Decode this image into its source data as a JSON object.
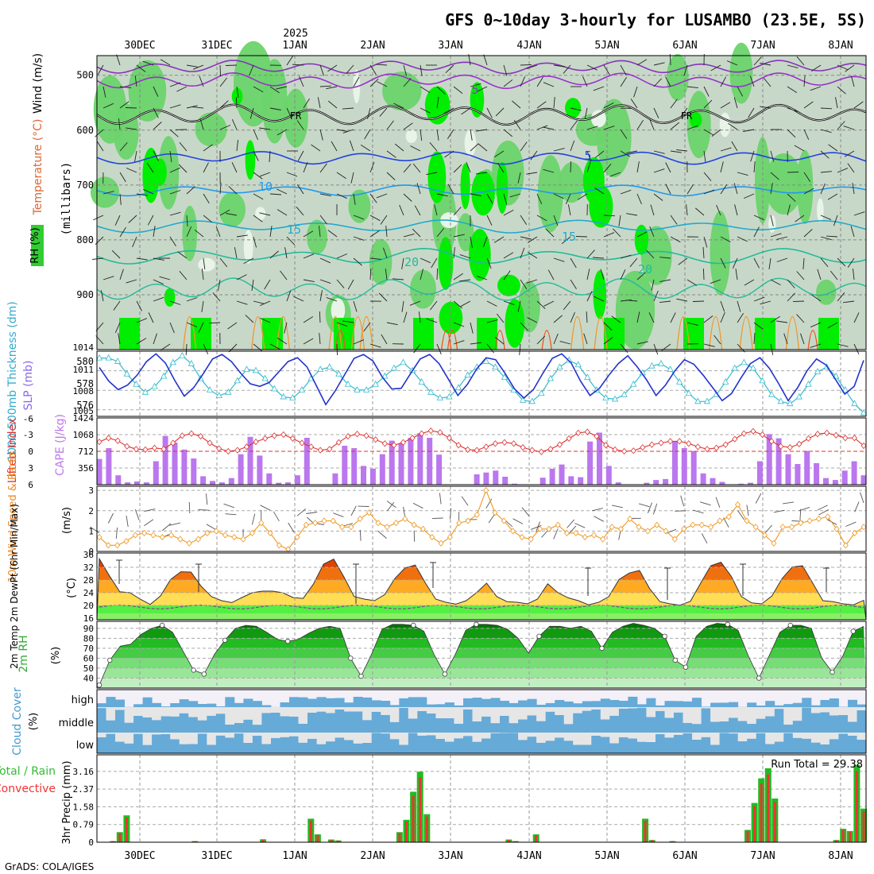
{
  "title": "GFS 0~10day 3-hourly for LUSAMBO (23.5E, 5S)",
  "year_label": "2025",
  "credit": "GrADS: COLA/IGES",
  "dates": [
    "30DEC",
    "31DEC",
    "1JAN",
    "2JAN",
    "3JAN",
    "4JAN",
    "5JAN",
    "6JAN",
    "7JAN",
    "8JAN"
  ],
  "colors": {
    "rh_light": "#e8f4e8",
    "rh_mid": "#c8d8c8",
    "rh_green": "#6cd46c",
    "rh_bright": "#00ee00",
    "slp": "#2233cc",
    "thickness": "#33bbcc",
    "lifted": "#dd3333",
    "cape": "#bb77ee",
    "wind10m": "#ee9922",
    "temp_hot": "#ee5500",
    "temp_warm": "#ffbb33",
    "temp_green": "#66ee44",
    "cloud": "#66aad8",
    "cloud_bg": "#e6e6e6",
    "precip_total": "#22bb22",
    "precip_conv": "#ee3333"
  },
  "panels": {
    "upper": {
      "label_rh": "RH (%)",
      "label_temp": "Temperature (°C)",
      "label_wind": "Wind (m/s)",
      "label_units": "(millibars)",
      "y_ticks": [
        "500",
        "600",
        "700",
        "800",
        "900"
      ],
      "contour_labels": [
        {
          "text": "5",
          "color": "#9933cc"
        },
        {
          "text": "FR",
          "color": "#000000"
        },
        {
          "text": "FR",
          "color": "#000000"
        },
        {
          "text": "5",
          "color": "#2244dd"
        },
        {
          "text": "10",
          "color": "#2299ee"
        },
        {
          "text": "15",
          "color": "#22aacc"
        },
        {
          "text": "15",
          "color": "#22aacc"
        },
        {
          "text": "20",
          "color": "#22bb99"
        },
        {
          "text": "20",
          "color": "#22bb99"
        }
      ]
    },
    "slp": {
      "label_thickness": "1000-500mb Thickness (dm)",
      "label_slp": "SLP (mb)",
      "left_ticks": [
        "580",
        "578",
        "576"
      ],
      "right_ticks": [
        "1014",
        "1011",
        "1008",
        "1005"
      ]
    },
    "li": {
      "label_li": "Lifted Index",
      "label_cape": "CAPE (J/kg)",
      "left_ticks": [
        "-6",
        "-3",
        "0",
        "3",
        "6"
      ],
      "right_ticks": [
        "1424",
        "1068",
        "712",
        "356"
      ]
    },
    "wind": {
      "label": "10m Wind Speed & Barbs",
      "units": "(m/s)",
      "ticks": [
        "3",
        "2",
        "1",
        "0"
      ]
    },
    "temp": {
      "label": "2m Temp 2m DewPt (6hr Min/Max)",
      "units": "(°C)",
      "ticks": [
        "36",
        "32",
        "28",
        "24",
        "20",
        "16"
      ]
    },
    "rh": {
      "label": "2m RH",
      "units": "(%)",
      "ticks": [
        "90",
        "80",
        "70",
        "60",
        "50",
        "40"
      ]
    },
    "cloud": {
      "label": "Cloud Cover",
      "units": "(%)",
      "ticks": [
        "high",
        "middle",
        "low"
      ]
    },
    "precip": {
      "label_total": "Total / Rain",
      "label_conv": "Convective",
      "label_units": "3hr Precip (mm)",
      "ticks": [
        "3.16",
        "2.37",
        "1.58",
        "0.79",
        "0"
      ],
      "run_total": "Run Total = 29.38"
    }
  },
  "chart_data": [
    {
      "type": "line",
      "name": "Sea level pressure",
      "ylim": [
        1004,
        1014
      ],
      "values": [
        1011.5,
        1009.4,
        1008.1,
        1008.8,
        1010.3,
        1012.4,
        1013.6,
        1012.2,
        1009.5,
        1007.1,
        1008.4,
        1010.5,
        1012.8,
        1013.5,
        1012.4,
        1010.6,
        1009.0,
        1008.6,
        1009.2,
        1010.8,
        1012.4,
        1013.0,
        1011.6,
        1008.7,
        1005.8,
        1007.9,
        1010.4,
        1012.9,
        1013.5,
        1012.5,
        1010.0,
        1008.2,
        1008.3,
        1010.6,
        1012.8,
        1013.5,
        1012.1,
        1009.7,
        1007.2,
        1008.9,
        1011.3,
        1013.0,
        1012.7,
        1010.6,
        1008.2,
        1006.8,
        1008.1,
        1010.6,
        1012.9,
        1013.6,
        1012.2,
        1009.4,
        1007.2,
        1008.3,
        1010.3,
        1012.1,
        1013.3,
        1011.6,
        1009.6,
        1007.2,
        1008.8,
        1011.0,
        1012.7,
        1012.0,
        1010.3,
        1008.4,
        1006.4,
        1007.5,
        1009.9,
        1012.1,
        1013.0,
        1011.4,
        1009.0,
        1006.4,
        1008.4,
        1011.0,
        1012.8,
        1011.9,
        1009.7,
        1007.4,
        1008.6,
        1012.6
      ]
    },
    {
      "type": "line",
      "name": "1000-500mb thickness",
      "ylim": [
        575.3,
        581
      ],
      "values": [
        580.4,
        580.4,
        580.1,
        579.0,
        578.1,
        577.4,
        577.9,
        578.8,
        580.0,
        580.6,
        579.9,
        578.6,
        577.6,
        577.1,
        577.4,
        578.4,
        579.4,
        579.3,
        578.6,
        577.7,
        577.0,
        576.9,
        577.6,
        578.6,
        579.4,
        579.6,
        579.0,
        578.1,
        577.6,
        577.6,
        578.1,
        578.8,
        579.5,
        580.0,
        579.3,
        578.3,
        577.4,
        576.9,
        577.0,
        577.8,
        578.9,
        579.6,
        580.1,
        579.6,
        578.7,
        577.6,
        576.7,
        576.6,
        577.3,
        578.6,
        579.6,
        580.2,
        579.8,
        578.7,
        577.6,
        576.9,
        576.8,
        577.2,
        578.1,
        579.1,
        579.7,
        579.9,
        579.4,
        578.3,
        577.3,
        576.6,
        576.6,
        577.2,
        578.3,
        579.5,
        580.0,
        579.5,
        578.4,
        577.2,
        576.6,
        576.4,
        577.0,
        578.1,
        579.2,
        579.6,
        578.8,
        577.6,
        576.4,
        575.6
      ]
    },
    {
      "type": "line",
      "name": "Lifted index",
      "ylim": [
        6,
        -6
      ],
      "values": [
        -1.7,
        -2.4,
        -1.9,
        -0.9,
        -0.4,
        -0.3,
        -0.6,
        -0.4,
        -1.5,
        -2.8,
        -3.2,
        -2.7,
        -1.5,
        -0.5,
        0.0,
        -0.2,
        -0.8,
        -1.7,
        -2.3,
        -2.8,
        -3.0,
        -2.3,
        -1.5,
        -0.8,
        -0.2,
        -0.4,
        -1.6,
        -2.7,
        -3.1,
        -2.8,
        -2.1,
        -1.4,
        -1.1,
        -1.6,
        -2.4,
        -3.2,
        -3.7,
        -3.4,
        -2.4,
        -1.1,
        -0.3,
        -0.2,
        -0.8,
        -1.4,
        -1.6,
        -1.4,
        -0.7,
        -0.2,
        0.1,
        -0.4,
        -1.2,
        -2.3,
        -3.3,
        -3.5,
        -2.7,
        -1.1,
        -0.3,
        0.0,
        -0.1,
        -0.7,
        -1.2,
        -1.5,
        -1.8,
        -1.8,
        -1.4,
        -0.8,
        -0.4,
        -0.6,
        -1.2,
        -2.2,
        -3.2,
        -3.6,
        -3.0,
        -1.8,
        -0.9,
        -0.7,
        -1.3,
        -2.3,
        -3.1,
        -3.3,
        -2.9,
        -2.4,
        -2.4,
        -1.0
      ]
    },
    {
      "type": "bar",
      "name": "CAPE",
      "ylim": [
        0,
        1424
      ],
      "values": [
        550,
        780,
        200,
        50,
        70,
        50,
        500,
        1040,
        900,
        750,
        560,
        180,
        80,
        50,
        140,
        650,
        1020,
        620,
        240,
        40,
        50,
        200,
        1000,
        0,
        0,
        240,
        830,
        780,
        400,
        340,
        650,
        940,
        880,
        1000,
        1100,
        1000,
        640,
        0,
        0,
        0,
        220,
        260,
        300,
        170,
        20,
        0,
        0,
        150,
        340,
        430,
        180,
        160,
        920,
        1110,
        400,
        50,
        0,
        0,
        40,
        100,
        120,
        920,
        780,
        720,
        240,
        140,
        60,
        0,
        20,
        40,
        500,
        1080,
        990,
        650,
        440,
        720,
        460,
        140,
        100,
        300,
        500,
        200
      ]
    },
    {
      "type": "line",
      "name": "10m wind speed",
      "ylim": [
        0,
        3.2
      ],
      "values": [
        0.7,
        0.3,
        0.3,
        0.5,
        0.8,
        0.9,
        0.8,
        0.7,
        0.8,
        0.6,
        0.4,
        0.6,
        0.9,
        1.0,
        0.8,
        0.7,
        0.6,
        0.9,
        1.4,
        0.9,
        0.3,
        0.1,
        0.7,
        1.3,
        1.4,
        1.5,
        1.5,
        1.2,
        1.2,
        1.6,
        1.9,
        1.4,
        1.2,
        1.4,
        1.6,
        1.3,
        1.1,
        0.7,
        0.4,
        0.7,
        1.4,
        1.5,
        1.8,
        3.0,
        1.9,
        1.5,
        1.0,
        0.7,
        0.6,
        1.1,
        1.1,
        1.3,
        0.9,
        0.9,
        0.7,
        0.8,
        0.6,
        1.2,
        1.1,
        1.6,
        1.2,
        1.0,
        1.3,
        1.0,
        0.6,
        1.1,
        1.3,
        1.3,
        1.2,
        1.5,
        1.7,
        2.3,
        1.5,
        1.2,
        0.8,
        0.4,
        1.2,
        1.2,
        1.4,
        1.5,
        1.6,
        1.7,
        1.1,
        0.3,
        0.9,
        1.2
      ]
    },
    {
      "type": "area",
      "name": "2m temperature",
      "ylim": [
        15.5,
        36.5
      ],
      "values": [
        34.7,
        29.3,
        24.3,
        24.0,
        22.0,
        20.3,
        23.0,
        28.2,
        30.6,
        30.5,
        26.0,
        22.8,
        21.5,
        20.9,
        22.5,
        24.0,
        24.5,
        24.5,
        24.0,
        22.5,
        22.2,
        26.7,
        33.0,
        34.6,
        29.0,
        22.8,
        22.0,
        21.5,
        23.4,
        28.5,
        31.8,
        32.7,
        27.0,
        22.0,
        21.0,
        20.4,
        21.5,
        24.0,
        27.0,
        22.8,
        21.2,
        21.0,
        20.5,
        22.0,
        26.8,
        24.0,
        22.4,
        21.5,
        20.2,
        21.0,
        22.8,
        28.2,
        30.2,
        31.0,
        25.3,
        21.2,
        20.5,
        20.1,
        21.3,
        27.0,
        32.5,
        33.6,
        29.2,
        22.8,
        20.8,
        20.5,
        23.0,
        28.5,
        32.1,
        32.5,
        27.0,
        21.5,
        21.2,
        20.5,
        20.2,
        21.6
      ]
    },
    {
      "type": "area",
      "name": "2m relative humidity",
      "ylim": [
        30,
        97
      ],
      "values": [
        33,
        58,
        72,
        74,
        84,
        90,
        93,
        86,
        67,
        48,
        44,
        64,
        78,
        90,
        93,
        92,
        86,
        79,
        77,
        79,
        85,
        90,
        92,
        90,
        60,
        42,
        64,
        89,
        94,
        94,
        93,
        87,
        63,
        44,
        64,
        88,
        94,
        94,
        93,
        89,
        80,
        65,
        82,
        92,
        92,
        90,
        92,
        87,
        70,
        86,
        92,
        95,
        93,
        90,
        82,
        58,
        51,
        82,
        92,
        95,
        94,
        88,
        62,
        40,
        63,
        86,
        93,
        93,
        90,
        60,
        46,
        62,
        87,
        92
      ]
    },
    {
      "type": "bar",
      "name": "3hr precipitation total",
      "ylim": [
        0,
        3.9
      ],
      "values": [
        0,
        0,
        0.05,
        0.45,
        1.2,
        0,
        0,
        0,
        0,
        0,
        0,
        0,
        0,
        0,
        0.05,
        0,
        0,
        0,
        0,
        0,
        0,
        0,
        0,
        0,
        0.13,
        0,
        0,
        0,
        0,
        0,
        0,
        1.05,
        0.35,
        0,
        0.12,
        0.08,
        0,
        0,
        0,
        0,
        0,
        0,
        0,
        0,
        0.45,
        1.0,
        2.25,
        3.15,
        1.25,
        0,
        0,
        0,
        0,
        0,
        0,
        0,
        0,
        0,
        0,
        0,
        0.12,
        0.05,
        0,
        0,
        0.35,
        0,
        0,
        0,
        0,
        0,
        0,
        0,
        0,
        0,
        0,
        0,
        0,
        0,
        0,
        0,
        1.05,
        0.1,
        0,
        0,
        0.05,
        0,
        0,
        0,
        0,
        0,
        0,
        0,
        0,
        0,
        0,
        0.55,
        1.75,
        2.85,
        3.3,
        1.95,
        0,
        0,
        0,
        0,
        0,
        0,
        0,
        0,
        0.1,
        0.6,
        0.5,
        3.45,
        1.5
      ]
    }
  ]
}
